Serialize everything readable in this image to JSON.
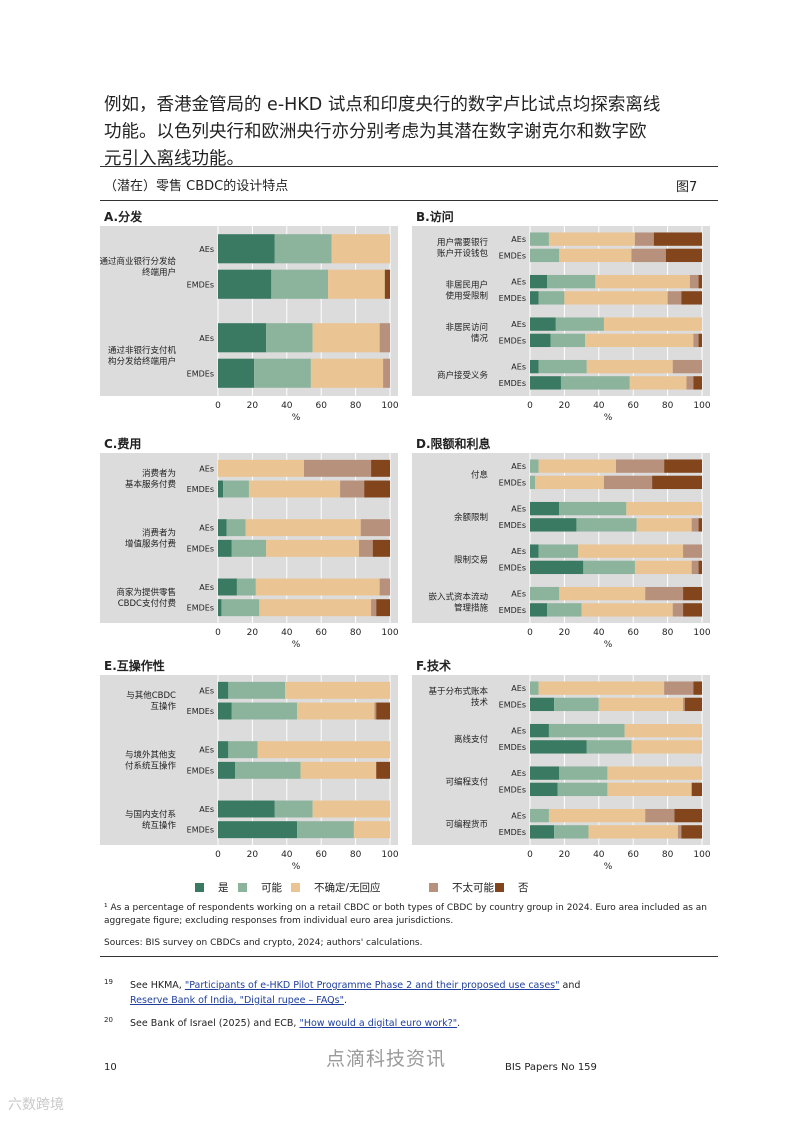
{
  "intro": {
    "lines": [
      "例如，香港金管局的 e-HKD 试点和印度央行的数字卢比试点均探索离线",
      "功能。以色列央行和欧洲央行亦分别考虑为其潜在数字谢克尔和数字欧",
      "元引入离线功能。"
    ]
  },
  "figure": {
    "title": "（潜在）零售 CBDC的设计特点",
    "number": "图7"
  },
  "colors": {
    "yes": "#3a7a62",
    "maybe": "#8cb49c",
    "unsure": "#ebc493",
    "unlikely": "#b8917c",
    "no": "#83461c",
    "panel_bg": "#dcdcdc"
  },
  "legend": [
    "是",
    "可能",
    "不确定/无回应",
    "不太可能",
    "否"
  ],
  "chart_data": [
    {
      "type": "bar",
      "orientation": "horizontal-stacked",
      "title": "A.分发",
      "xlabel": "%",
      "xlim": [
        0,
        100
      ],
      "xticks": [
        "0",
        "20",
        "40",
        "60",
        "80",
        "100"
      ],
      "groups": [
        {
          "label": [
            "通过商业银行分发给",
            "终端用户"
          ],
          "rows": [
            {
              "name": "AEs",
              "values": [
                33,
                33,
                34,
                0,
                0
              ]
            },
            {
              "name": "EMDEs",
              "values": [
                31,
                33,
                33,
                0,
                3
              ]
            }
          ]
        },
        {
          "label": [
            "通过非银行支付机",
            "构分发给终端用户"
          ],
          "rows": [
            {
              "name": "AEs",
              "values": [
                28,
                27,
                39,
                6,
                0
              ]
            },
            {
              "name": "EMDEs",
              "values": [
                21,
                33,
                42,
                4,
                0
              ]
            }
          ]
        }
      ]
    },
    {
      "type": "bar",
      "orientation": "horizontal-stacked",
      "title": "B.访问",
      "xlabel": "%",
      "xlim": [
        0,
        100
      ],
      "xticks": [
        "0",
        "20",
        "40",
        "60",
        "80",
        "100"
      ],
      "groups": [
        {
          "label": [
            "用户需要银行",
            "账户开设钱包"
          ],
          "rows": [
            {
              "name": "AEs",
              "values": [
                0,
                11,
                50,
                11,
                28
              ]
            },
            {
              "name": "EMDEs",
              "values": [
                0,
                17,
                42,
                20,
                21
              ]
            }
          ]
        },
        {
          "label": [
            "非居民用户",
            "使用受限制"
          ],
          "rows": [
            {
              "name": "AEs",
              "values": [
                10,
                28,
                55,
                5,
                2
              ]
            },
            {
              "name": "EMDEs",
              "values": [
                5,
                15,
                60,
                8,
                12
              ]
            }
          ]
        },
        {
          "label": [
            "非居民访问",
            "情况"
          ],
          "rows": [
            {
              "name": "AEs",
              "values": [
                15,
                28,
                57,
                0,
                0
              ]
            },
            {
              "name": "EMDEs",
              "values": [
                12,
                20,
                63,
                3,
                2
              ]
            }
          ]
        },
        {
          "label": [
            "商户接受义务"
          ],
          "rows": [
            {
              "name": "AEs",
              "values": [
                5,
                28,
                50,
                17,
                0
              ]
            },
            {
              "name": "EMDEs",
              "values": [
                18,
                40,
                33,
                4,
                5
              ]
            }
          ]
        }
      ]
    },
    {
      "type": "bar",
      "orientation": "horizontal-stacked",
      "title": "C.费用",
      "xlabel": "%",
      "xlim": [
        0,
        100
      ],
      "xticks": [
        "0",
        "20",
        "40",
        "60",
        "80",
        "100"
      ],
      "groups": [
        {
          "label": [
            "消费者为",
            "基本服务付费"
          ],
          "rows": [
            {
              "name": "AEs",
              "values": [
                0,
                0,
                50,
                39,
                11
              ]
            },
            {
              "name": "EMDEs",
              "values": [
                3,
                15,
                53,
                14,
                15
              ]
            }
          ]
        },
        {
          "label": [
            "消费者为",
            "增值服务付费"
          ],
          "rows": [
            {
              "name": "AEs",
              "values": [
                5,
                11,
                67,
                17,
                0
              ]
            },
            {
              "name": "EMDEs",
              "values": [
                8,
                20,
                54,
                8,
                10
              ]
            }
          ]
        },
        {
          "label": [
            "商家为提供零售",
            "CBDC支付付费"
          ],
          "rows": [
            {
              "name": "AEs",
              "values": [
                11,
                11,
                72,
                6,
                0
              ]
            },
            {
              "name": "EMDEs",
              "values": [
                2,
                22,
                65,
                3,
                8
              ]
            }
          ]
        }
      ]
    },
    {
      "type": "bar",
      "orientation": "horizontal-stacked",
      "title": "D.限额和利息",
      "xlabel": "%",
      "xlim": [
        0,
        100
      ],
      "xticks": [
        "0",
        "20",
        "40",
        "60",
        "80",
        "100"
      ],
      "groups": [
        {
          "label": [
            "付息"
          ],
          "rows": [
            {
              "name": "AEs",
              "values": [
                0,
                5,
                45,
                28,
                22
              ]
            },
            {
              "name": "EMDEs",
              "values": [
                0,
                3,
                40,
                28,
                29
              ]
            }
          ]
        },
        {
          "label": [
            "余额限制"
          ],
          "rows": [
            {
              "name": "AEs",
              "values": [
                17,
                39,
                44,
                0,
                0
              ]
            },
            {
              "name": "EMDEs",
              "values": [
                27,
                35,
                32,
                4,
                2
              ]
            }
          ]
        },
        {
          "label": [
            "限制交易"
          ],
          "rows": [
            {
              "name": "AEs",
              "values": [
                5,
                23,
                61,
                11,
                0
              ]
            },
            {
              "name": "EMDEs",
              "values": [
                31,
                30,
                33,
                4,
                2
              ]
            }
          ]
        },
        {
          "label": [
            "嵌入式资本流动",
            "管理措施"
          ],
          "rows": [
            {
              "name": "AEs",
              "values": [
                0,
                17,
                50,
                22,
                11
              ]
            },
            {
              "name": "EMDEs",
              "values": [
                10,
                20,
                53,
                6,
                11
              ]
            }
          ]
        }
      ]
    },
    {
      "type": "bar",
      "orientation": "horizontal-stacked",
      "title": "E.互操作性",
      "xlabel": "%",
      "xlim": [
        0,
        100
      ],
      "xticks": [
        "0",
        "20",
        "40",
        "60",
        "80",
        "100"
      ],
      "groups": [
        {
          "label": [
            "与其他CBDC",
            "互操作"
          ],
          "rows": [
            {
              "name": "AEs",
              "values": [
                6,
                33,
                61,
                0,
                0
              ]
            },
            {
              "name": "EMDEs",
              "values": [
                8,
                38,
                45,
                1,
                8
              ]
            }
          ]
        },
        {
          "label": [
            "与境外其他支",
            "付系统互操作"
          ],
          "rows": [
            {
              "name": "AEs",
              "values": [
                6,
                17,
                77,
                0,
                0
              ]
            },
            {
              "name": "EMDEs",
              "values": [
                10,
                38,
                44,
                0,
                8
              ]
            }
          ]
        },
        {
          "label": [
            "与国内支付系",
            "统互操作"
          ],
          "rows": [
            {
              "name": "AEs",
              "values": [
                33,
                22,
                45,
                0,
                0
              ]
            },
            {
              "name": "EMDEs",
              "values": [
                46,
                33,
                21,
                0,
                0
              ]
            }
          ]
        }
      ]
    },
    {
      "type": "bar",
      "orientation": "horizontal-stacked",
      "title": "F.技术",
      "xlabel": "%",
      "xlim": [
        0,
        100
      ],
      "xticks": [
        "0",
        "20",
        "40",
        "60",
        "80",
        "100"
      ],
      "groups": [
        {
          "label": [
            "基于分布式账本",
            "技术"
          ],
          "rows": [
            {
              "name": "AEs",
              "values": [
                0,
                5,
                73,
                17,
                5
              ]
            },
            {
              "name": "EMDEs",
              "values": [
                14,
                26,
                49,
                1,
                10
              ]
            }
          ]
        },
        {
          "label": [
            "离线支付"
          ],
          "rows": [
            {
              "name": "AEs",
              "values": [
                11,
                44,
                45,
                0,
                0
              ]
            },
            {
              "name": "EMDEs",
              "values": [
                33,
                26,
                41,
                0,
                0
              ]
            }
          ]
        },
        {
          "label": [
            "可编程支付"
          ],
          "rows": [
            {
              "name": "AEs",
              "values": [
                17,
                28,
                55,
                0,
                0
              ]
            },
            {
              "name": "EMDEs",
              "values": [
                16,
                29,
                49,
                0,
                6
              ]
            }
          ]
        },
        {
          "label": [
            "可编程货币"
          ],
          "rows": [
            {
              "name": "AEs",
              "values": [
                0,
                11,
                56,
                17,
                16
              ]
            },
            {
              "name": "EMDEs",
              "values": [
                14,
                20,
                52,
                2,
                12
              ]
            }
          ]
        }
      ]
    }
  ],
  "footnote": "¹ As a percentage of respondents working on a retail CBDC or both types of CBDC by country group in 2024. Euro area included as an aggregate figure; excluding responses from individual euro area jurisdictions.",
  "sources": "Sources: BIS survey on CBDCs and crypto, 2024; authors' calculations.",
  "fn19": {
    "num": "19",
    "pre": "See HKMA, ",
    "link1": "\"Participants of e-HKD Pilot Programme Phase 2 and their proposed use cases\"",
    "mid": " and",
    "link2": "Reserve Bank of India, \"Digital rupee – FAQs\"",
    "post": "."
  },
  "fn20": {
    "num": "20",
    "pre": "See Bank of Israel (2025) and ECB, ",
    "link": "\"How would a digital euro work?\"",
    "post": "."
  },
  "page_number": "10",
  "series_name": "BIS Papers No 159",
  "watermark": "点滴科技资讯",
  "logo_text": "六数跨境"
}
